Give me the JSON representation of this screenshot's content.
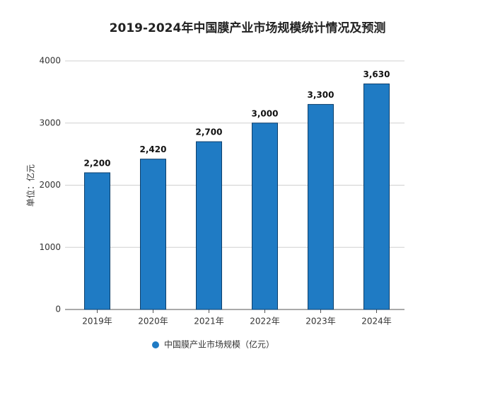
{
  "chart_data": {
    "type": "bar",
    "title": "2019-2024年中国膜产业市场规模统计情况及预测",
    "y_label": "单位：亿元",
    "categories": [
      "2019年",
      "2020年",
      "2021年",
      "2022年",
      "2023年",
      "2024年"
    ],
    "series": [
      {
        "name": "中国膜产业市场规模（亿元）",
        "color": "#1f7bc4",
        "values": [
          2200,
          2420,
          2700,
          3000,
          3300,
          3630
        ],
        "value_labels": [
          "2,200",
          "2,420",
          "2,700",
          "3,000",
          "3,300",
          "3,630"
        ]
      }
    ],
    "ylim": [
      0,
      4000
    ],
    "yticks": [
      0,
      1000,
      2000,
      3000,
      4000
    ],
    "grid": true,
    "legend": "bottom"
  }
}
